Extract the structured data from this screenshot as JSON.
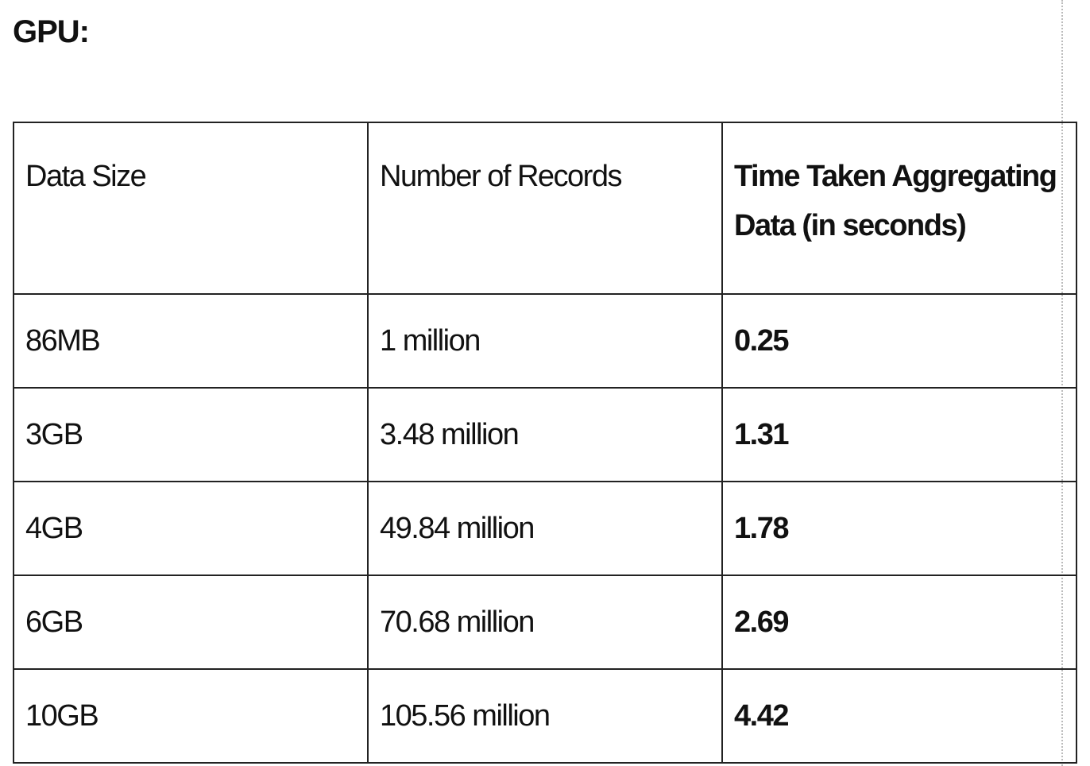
{
  "title": "GPU:",
  "table": {
    "header": [
      "Data Size",
      "Number of Records",
      "Time Taken Aggregating Data (in seconds)"
    ],
    "rows": [
      [
        "86MB",
        "1 million",
        "0.25"
      ],
      [
        "3GB",
        "3.48 million",
        "1.31"
      ],
      [
        "4GB",
        "49.84 million",
        "1.78"
      ],
      [
        "6GB",
        "70.68 million",
        "2.69"
      ],
      [
        "10GB",
        "105.56 million",
        "4.42"
      ]
    ]
  }
}
